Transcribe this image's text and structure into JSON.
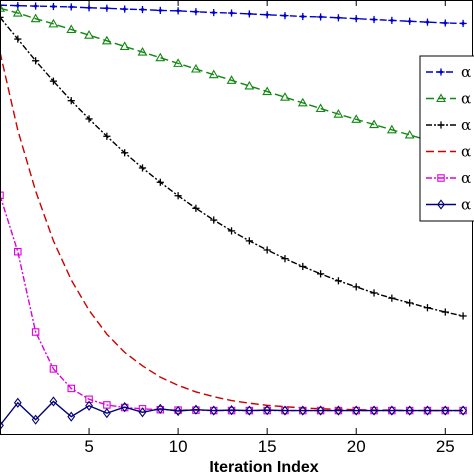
{
  "chart_data": {
    "type": "line",
    "title": "",
    "xlabel": "Iteration Index",
    "ylabel": "",
    "xlim": [
      0,
      26.5
    ],
    "ylim": [
      0,
      1.0
    ],
    "xticks": [
      5,
      10,
      15,
      20,
      25
    ],
    "x": [
      0,
      1,
      2,
      3,
      4,
      5,
      6,
      7,
      8,
      9,
      10,
      11,
      12,
      13,
      14,
      15,
      16,
      17,
      18,
      19,
      20,
      21,
      22,
      23,
      24,
      25,
      26
    ],
    "grid": false,
    "legend_position": "right",
    "series": [
      {
        "name": "α",
        "color": "#0000cc",
        "dash": "7,3",
        "marker": "plus-diamond",
        "values": [
          0.988,
          0.987,
          0.986,
          0.985,
          0.984,
          0.982,
          0.981,
          0.979,
          0.978,
          0.976,
          0.975,
          0.973,
          0.971,
          0.97,
          0.968,
          0.966,
          0.964,
          0.962,
          0.961,
          0.959,
          0.957,
          0.955,
          0.953,
          0.951,
          0.949,
          0.947,
          0.946
        ]
      },
      {
        "name": "α",
        "color": "#118811",
        "dash": "8,4",
        "marker": "triangle",
        "values": [
          0.981,
          0.97,
          0.957,
          0.945,
          0.932,
          0.919,
          0.906,
          0.893,
          0.88,
          0.867,
          0.854,
          0.841,
          0.828,
          0.815,
          0.802,
          0.789,
          0.776,
          0.763,
          0.75,
          0.737,
          0.725,
          0.713,
          0.701,
          0.689,
          0.677,
          0.666,
          0.655
        ]
      },
      {
        "name": "α",
        "color": "#000000",
        "dash": "6,2,2,2",
        "marker": "plus",
        "values": [
          0.96,
          0.91,
          0.86,
          0.813,
          0.768,
          0.726,
          0.686,
          0.648,
          0.613,
          0.58,
          0.549,
          0.52,
          0.493,
          0.468,
          0.445,
          0.424,
          0.404,
          0.386,
          0.369,
          0.353,
          0.339,
          0.325,
          0.313,
          0.302,
          0.291,
          0.281,
          0.272
        ]
      },
      {
        "name": "α",
        "color": "#cc0000",
        "dash": "8,4",
        "marker": "none",
        "values": [
          0.88,
          0.7,
          0.56,
          0.445,
          0.355,
          0.285,
          0.23,
          0.188,
          0.157,
          0.131,
          0.112,
          0.097,
          0.086,
          0.077,
          0.071,
          0.066,
          0.063,
          0.06,
          0.058,
          0.057,
          0.056,
          0.055,
          0.055,
          0.054,
          0.054,
          0.054,
          0.054
        ]
      },
      {
        "name": "α",
        "color": "#dd00dd",
        "dash": "6,2,2,2",
        "marker": "square",
        "values": [
          0.55,
          0.42,
          0.235,
          0.15,
          0.105,
          0.08,
          0.067,
          0.061,
          0.058,
          0.056,
          0.055,
          0.055,
          0.054,
          0.054,
          0.054,
          0.054,
          0.054,
          0.054,
          0.054,
          0.054,
          0.054,
          0.054,
          0.054,
          0.054,
          0.054,
          0.054,
          0.054
        ]
      },
      {
        "name": "α",
        "color": "#000077",
        "dash": "",
        "marker": "diamond",
        "values": [
          0.02,
          0.072,
          0.033,
          0.075,
          0.04,
          0.065,
          0.048,
          0.062,
          0.05,
          0.058,
          0.053,
          0.056,
          0.054,
          0.055,
          0.054,
          0.055,
          0.054,
          0.054,
          0.054,
          0.054,
          0.054,
          0.054,
          0.054,
          0.054,
          0.054,
          0.054,
          0.054
        ]
      }
    ]
  }
}
